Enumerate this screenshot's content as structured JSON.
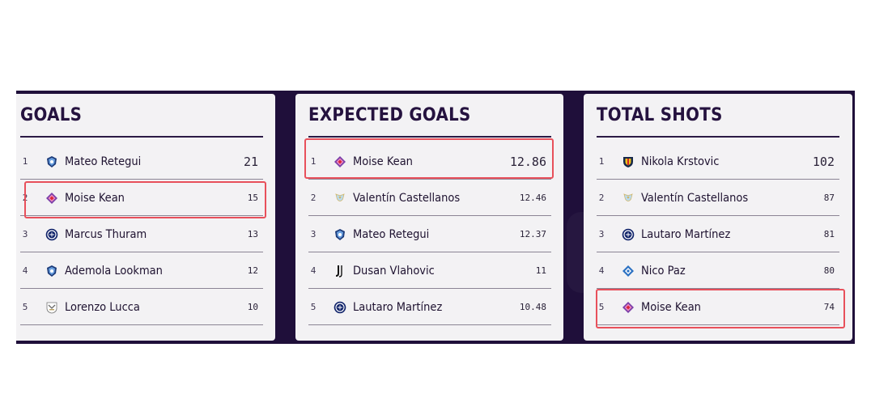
{
  "colors": {
    "background_band": "#1f0f3a",
    "card": "#f3f2f4",
    "title_text": "#25123f",
    "highlight": "#e8505b"
  },
  "panels": [
    {
      "title": "GOALS",
      "rows": [
        {
          "rank": "1",
          "player": "Mateo Retegui",
          "value": "21",
          "crest": "atalanta-crest-icon"
        },
        {
          "rank": "2",
          "player": "Moise Kean",
          "value": "15",
          "crest": "fiorentina-crest-icon"
        },
        {
          "rank": "3",
          "player": "Marcus Thuram",
          "value": "13",
          "crest": "inter-crest-icon"
        },
        {
          "rank": "4",
          "player": "Ademola Lookman",
          "value": "12",
          "crest": "atalanta-crest-icon"
        },
        {
          "rank": "5",
          "player": "Lorenzo Lucca",
          "value": "10",
          "crest": "udinese-crest-icon"
        }
      ]
    },
    {
      "title": "EXPECTED GOALS",
      "rows": [
        {
          "rank": "1",
          "player": "Moise Kean",
          "value": "12.86",
          "crest": "fiorentina-crest-icon"
        },
        {
          "rank": "2",
          "player": "Valentín Castellanos",
          "value": "12.46",
          "crest": "lazio-crest-icon"
        },
        {
          "rank": "3",
          "player": "Mateo Retegui",
          "value": "12.37",
          "crest": "atalanta-crest-icon"
        },
        {
          "rank": "4",
          "player": "Dusan Vlahovic",
          "value": "11",
          "crest": "juventus-crest-icon"
        },
        {
          "rank": "5",
          "player": "Lautaro Martínez",
          "value": "10.48",
          "crest": "inter-crest-icon"
        }
      ]
    },
    {
      "title": "TOTAL SHOTS",
      "rows": [
        {
          "rank": "1",
          "player": "Nikola Krstovic",
          "value": "102",
          "crest": "lecce-crest-icon"
        },
        {
          "rank": "2",
          "player": "Valentín Castellanos",
          "value": "87",
          "crest": "lazio-crest-icon"
        },
        {
          "rank": "3",
          "player": "Lautaro Martínez",
          "value": "81",
          "crest": "inter-crest-icon"
        },
        {
          "rank": "4",
          "player": "Nico Paz",
          "value": "80",
          "crest": "como-crest-icon"
        },
        {
          "rank": "5",
          "player": "Moise Kean",
          "value": "74",
          "crest": "fiorentina-crest-icon"
        }
      ]
    }
  ]
}
